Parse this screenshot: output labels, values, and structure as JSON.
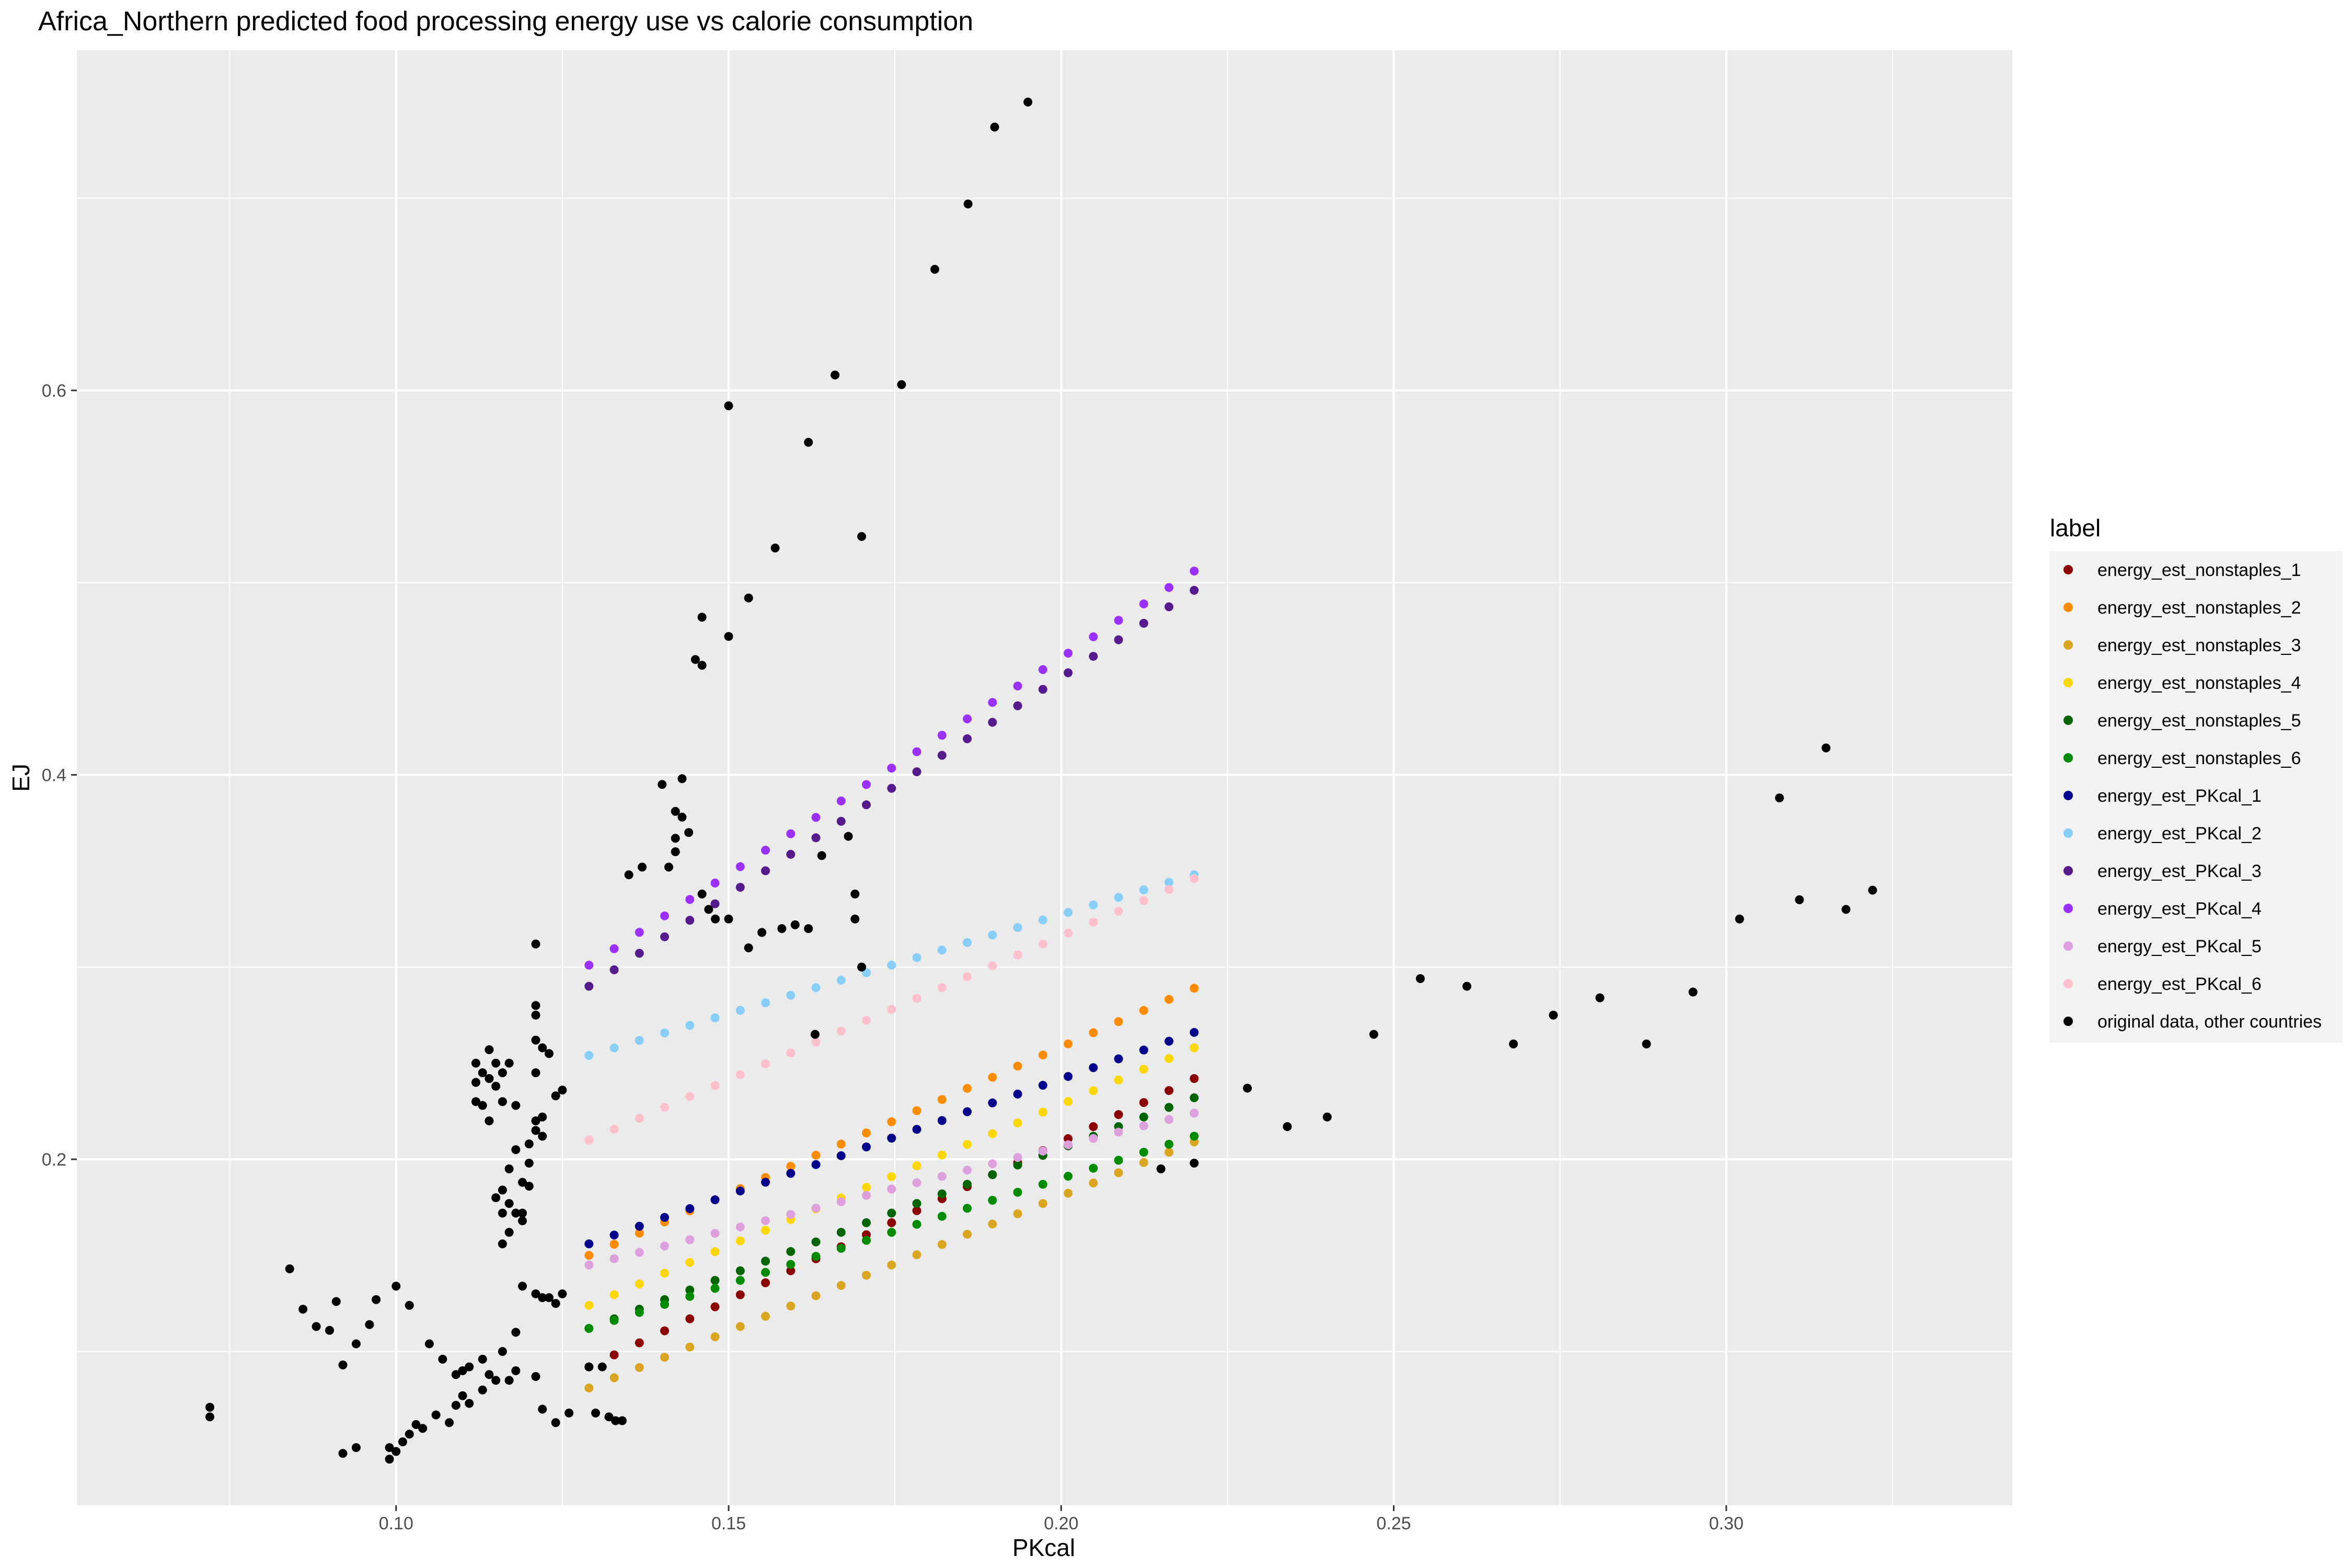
{
  "chart_data": {
    "type": "scatter",
    "title": "Africa_Northern predicted food processing energy use vs calorie consumption",
    "xlabel": "PKcal",
    "ylabel": "EJ",
    "xlim": [
      0.052,
      0.343
    ],
    "ylim": [
      0.02,
      0.777
    ],
    "x_ticks": [
      0.1,
      0.15,
      0.2,
      0.25,
      0.3
    ],
    "x_tick_labels": [
      "0.10",
      "0.15",
      "0.20",
      "0.25",
      "0.30"
    ],
    "y_ticks": [
      0.2,
      0.4,
      0.6
    ],
    "y_tick_labels": [
      "0.2",
      "0.4",
      "0.6"
    ],
    "grid": true,
    "legend": {
      "title": "label",
      "position": "right"
    },
    "series": [
      {
        "name": "energy_est_nonstaples_1",
        "color": "#8B0000",
        "line": {
          "x0": 0.129,
          "x1": 0.22,
          "y0": 0.092,
          "y1": 0.242,
          "n": 25
        }
      },
      {
        "name": "energy_est_nonstaples_2",
        "color": "#FF8C00",
        "line": {
          "x0": 0.129,
          "x1": 0.22,
          "y0": 0.15,
          "y1": 0.289,
          "n": 25
        }
      },
      {
        "name": "energy_est_nonstaples_3",
        "color": "#DAA520",
        "line": {
          "x0": 0.129,
          "x1": 0.22,
          "y0": 0.081,
          "y1": 0.209,
          "n": 25
        }
      },
      {
        "name": "energy_est_nonstaples_4",
        "color": "#FFD700",
        "line": {
          "x0": 0.129,
          "x1": 0.22,
          "y0": 0.124,
          "y1": 0.258,
          "n": 25
        }
      },
      {
        "name": "energy_est_nonstaples_5",
        "color": "#006400",
        "line": {
          "x0": 0.129,
          "x1": 0.22,
          "y0": 0.112,
          "y1": 0.232,
          "n": 25
        }
      },
      {
        "name": "energy_est_nonstaples_6",
        "color": "#008B00",
        "line": {
          "x0": 0.129,
          "x1": 0.22,
          "y0": 0.112,
          "y1": 0.212,
          "n": 25
        }
      },
      {
        "name": "energy_est_PKcal_1",
        "color": "#00008B",
        "line": {
          "x0": 0.129,
          "x1": 0.22,
          "y0": 0.156,
          "y1": 0.266,
          "n": 25
        }
      },
      {
        "name": "energy_est_PKcal_2",
        "color": "#87CEFA",
        "line": {
          "x0": 0.129,
          "x1": 0.22,
          "y0": 0.254,
          "y1": 0.348,
          "n": 25
        }
      },
      {
        "name": "energy_est_PKcal_3",
        "color": "#551A8B",
        "line": {
          "x0": 0.129,
          "x1": 0.22,
          "y0": 0.29,
          "y1": 0.496,
          "n": 25
        }
      },
      {
        "name": "energy_est_PKcal_4",
        "color": "#9B30FF",
        "line": {
          "x0": 0.129,
          "x1": 0.22,
          "y0": 0.301,
          "y1": 0.506,
          "n": 25
        }
      },
      {
        "name": "energy_est_PKcal_5",
        "color": "#DDA0DD",
        "line": {
          "x0": 0.129,
          "x1": 0.22,
          "y0": 0.145,
          "y1": 0.224,
          "n": 25
        }
      },
      {
        "name": "energy_est_PKcal_6",
        "color": "#FFC0CB",
        "line": {
          "x0": 0.129,
          "x1": 0.22,
          "y0": 0.21,
          "y1": 0.346,
          "n": 25
        }
      },
      {
        "name": "original data, other countries",
        "color": "#000000",
        "points": [
          [
            0.072,
            0.071
          ],
          [
            0.072,
            0.066
          ],
          [
            0.084,
            0.143
          ],
          [
            0.086,
            0.122
          ],
          [
            0.088,
            0.113
          ],
          [
            0.09,
            0.111
          ],
          [
            0.091,
            0.126
          ],
          [
            0.092,
            0.093
          ],
          [
            0.092,
            0.047
          ],
          [
            0.094,
            0.104
          ],
          [
            0.094,
            0.05
          ],
          [
            0.096,
            0.114
          ],
          [
            0.097,
            0.127
          ],
          [
            0.099,
            0.05
          ],
          [
            0.099,
            0.044
          ],
          [
            0.1,
            0.134
          ],
          [
            0.1,
            0.048
          ],
          [
            0.101,
            0.053
          ],
          [
            0.102,
            0.057
          ],
          [
            0.102,
            0.124
          ],
          [
            0.103,
            0.062
          ],
          [
            0.104,
            0.06
          ],
          [
            0.105,
            0.104
          ],
          [
            0.106,
            0.067
          ],
          [
            0.107,
            0.096
          ],
          [
            0.108,
            0.063
          ],
          [
            0.109,
            0.072
          ],
          [
            0.109,
            0.088
          ],
          [
            0.11,
            0.077
          ],
          [
            0.11,
            0.09
          ],
          [
            0.111,
            0.073
          ],
          [
            0.111,
            0.092
          ],
          [
            0.112,
            0.24
          ],
          [
            0.112,
            0.23
          ],
          [
            0.112,
            0.25
          ],
          [
            0.113,
            0.245
          ],
          [
            0.113,
            0.228
          ],
          [
            0.113,
            0.096
          ],
          [
            0.113,
            0.08
          ],
          [
            0.114,
            0.257
          ],
          [
            0.114,
            0.242
          ],
          [
            0.114,
            0.22
          ],
          [
            0.114,
            0.088
          ],
          [
            0.115,
            0.25
          ],
          [
            0.115,
            0.238
          ],
          [
            0.115,
            0.18
          ],
          [
            0.115,
            0.085
          ],
          [
            0.116,
            0.245
          ],
          [
            0.116,
            0.23
          ],
          [
            0.116,
            0.184
          ],
          [
            0.116,
            0.172
          ],
          [
            0.116,
            0.156
          ],
          [
            0.116,
            0.1
          ],
          [
            0.117,
            0.25
          ],
          [
            0.117,
            0.195
          ],
          [
            0.117,
            0.177
          ],
          [
            0.117,
            0.162
          ],
          [
            0.117,
            0.085
          ],
          [
            0.118,
            0.228
          ],
          [
            0.118,
            0.205
          ],
          [
            0.118,
            0.172
          ],
          [
            0.118,
            0.11
          ],
          [
            0.118,
            0.09
          ],
          [
            0.119,
            0.188
          ],
          [
            0.119,
            0.172
          ],
          [
            0.119,
            0.168
          ],
          [
            0.119,
            0.134
          ],
          [
            0.12,
            0.208
          ],
          [
            0.12,
            0.198
          ],
          [
            0.12,
            0.186
          ],
          [
            0.121,
            0.312
          ],
          [
            0.121,
            0.28
          ],
          [
            0.121,
            0.275
          ],
          [
            0.121,
            0.262
          ],
          [
            0.121,
            0.245
          ],
          [
            0.121,
            0.22
          ],
          [
            0.121,
            0.215
          ],
          [
            0.121,
            0.13
          ],
          [
            0.121,
            0.087
          ],
          [
            0.122,
            0.258
          ],
          [
            0.122,
            0.222
          ],
          [
            0.122,
            0.212
          ],
          [
            0.122,
            0.128
          ],
          [
            0.122,
            0.07
          ],
          [
            0.123,
            0.255
          ],
          [
            0.123,
            0.128
          ],
          [
            0.124,
            0.233
          ],
          [
            0.124,
            0.125
          ],
          [
            0.124,
            0.063
          ],
          [
            0.125,
            0.236
          ],
          [
            0.125,
            0.13
          ],
          [
            0.126,
            0.068
          ],
          [
            0.129,
            0.092
          ],
          [
            0.13,
            0.068
          ],
          [
            0.131,
            0.092
          ],
          [
            0.132,
            0.066
          ],
          [
            0.133,
            0.064
          ],
          [
            0.134,
            0.064
          ],
          [
            0.135,
            0.348
          ],
          [
            0.137,
            0.352
          ],
          [
            0.14,
            0.395
          ],
          [
            0.141,
            0.352
          ],
          [
            0.142,
            0.381
          ],
          [
            0.142,
            0.367
          ],
          [
            0.142,
            0.36
          ],
          [
            0.143,
            0.398
          ],
          [
            0.143,
            0.378
          ],
          [
            0.144,
            0.37
          ],
          [
            0.145,
            0.46
          ],
          [
            0.146,
            0.482
          ],
          [
            0.146,
            0.457
          ],
          [
            0.146,
            0.338
          ],
          [
            0.147,
            0.33
          ],
          [
            0.148,
            0.325
          ],
          [
            0.15,
            0.592
          ],
          [
            0.15,
            0.472
          ],
          [
            0.15,
            0.325
          ],
          [
            0.153,
            0.492
          ],
          [
            0.153,
            0.31
          ],
          [
            0.155,
            0.318
          ],
          [
            0.157,
            0.518
          ],
          [
            0.158,
            0.32
          ],
          [
            0.16,
            0.322
          ],
          [
            0.162,
            0.573
          ],
          [
            0.162,
            0.32
          ],
          [
            0.163,
            0.265
          ],
          [
            0.164,
            0.358
          ],
          [
            0.166,
            0.608
          ],
          [
            0.168,
            0.368
          ],
          [
            0.169,
            0.338
          ],
          [
            0.169,
            0.325
          ],
          [
            0.17,
            0.524
          ],
          [
            0.17,
            0.3
          ],
          [
            0.176,
            0.603
          ],
          [
            0.181,
            0.663
          ],
          [
            0.186,
            0.697
          ],
          [
            0.19,
            0.737
          ],
          [
            0.195,
            0.75
          ],
          [
            0.215,
            0.195
          ],
          [
            0.22,
            0.198
          ],
          [
            0.228,
            0.237
          ],
          [
            0.234,
            0.217
          ],
          [
            0.24,
            0.222
          ],
          [
            0.247,
            0.265
          ],
          [
            0.254,
            0.294
          ],
          [
            0.261,
            0.29
          ],
          [
            0.268,
            0.26
          ],
          [
            0.274,
            0.275
          ],
          [
            0.281,
            0.284
          ],
          [
            0.288,
            0.26
          ],
          [
            0.295,
            0.287
          ],
          [
            0.302,
            0.325
          ],
          [
            0.308,
            0.388
          ],
          [
            0.311,
            0.335
          ],
          [
            0.315,
            0.414
          ],
          [
            0.318,
            0.33
          ],
          [
            0.322,
            0.34
          ]
        ]
      }
    ]
  }
}
